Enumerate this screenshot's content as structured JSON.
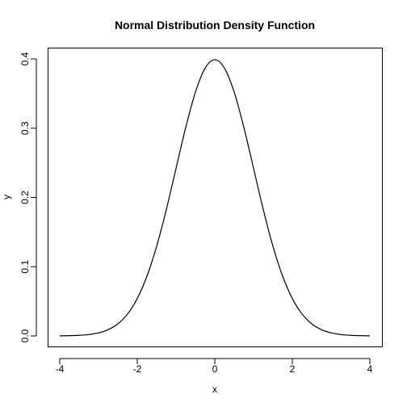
{
  "chart_data": {
    "type": "line",
    "title": "Normal Distribution Density Function",
    "xlabel": "x",
    "ylabel": "y",
    "xlim": [
      -4,
      4
    ],
    "ylim": [
      0,
      0.4
    ],
    "x_ticks": [
      -4,
      -2,
      0,
      2,
      4
    ],
    "x_tick_labels": [
      "-4",
      "-2",
      "0",
      "2",
      "4"
    ],
    "y_ticks": [
      0,
      0.1,
      0.2,
      0.3,
      0.4
    ],
    "y_tick_labels": [
      "0.0",
      "0.1",
      "0.2",
      "0.3",
      "0.4"
    ],
    "grid": false,
    "series": [
      {
        "x": [
          -4.0,
          -3.75,
          -3.5,
          -3.25,
          -3.0,
          -2.75,
          -2.5,
          -2.25,
          -2.0,
          -1.75,
          -1.5,
          -1.25,
          -1.0,
          -0.75,
          -0.5,
          -0.25,
          0.0,
          0.25,
          0.5,
          0.75,
          1.0,
          1.25,
          1.5,
          1.75,
          2.0,
          2.25,
          2.5,
          2.75,
          3.0,
          3.25,
          3.5,
          3.75,
          4.0
        ],
        "y": [
          0.0001,
          0.0004,
          0.0009,
          0.002,
          0.0044,
          0.0091,
          0.0175,
          0.0317,
          0.054,
          0.0863,
          0.1295,
          0.1826,
          0.242,
          0.3011,
          0.3521,
          0.3867,
          0.3989,
          0.3867,
          0.3521,
          0.3011,
          0.242,
          0.1826,
          0.1295,
          0.0863,
          0.054,
          0.0317,
          0.0175,
          0.0091,
          0.0044,
          0.002,
          0.0009,
          0.0004,
          0.0001
        ]
      }
    ]
  }
}
